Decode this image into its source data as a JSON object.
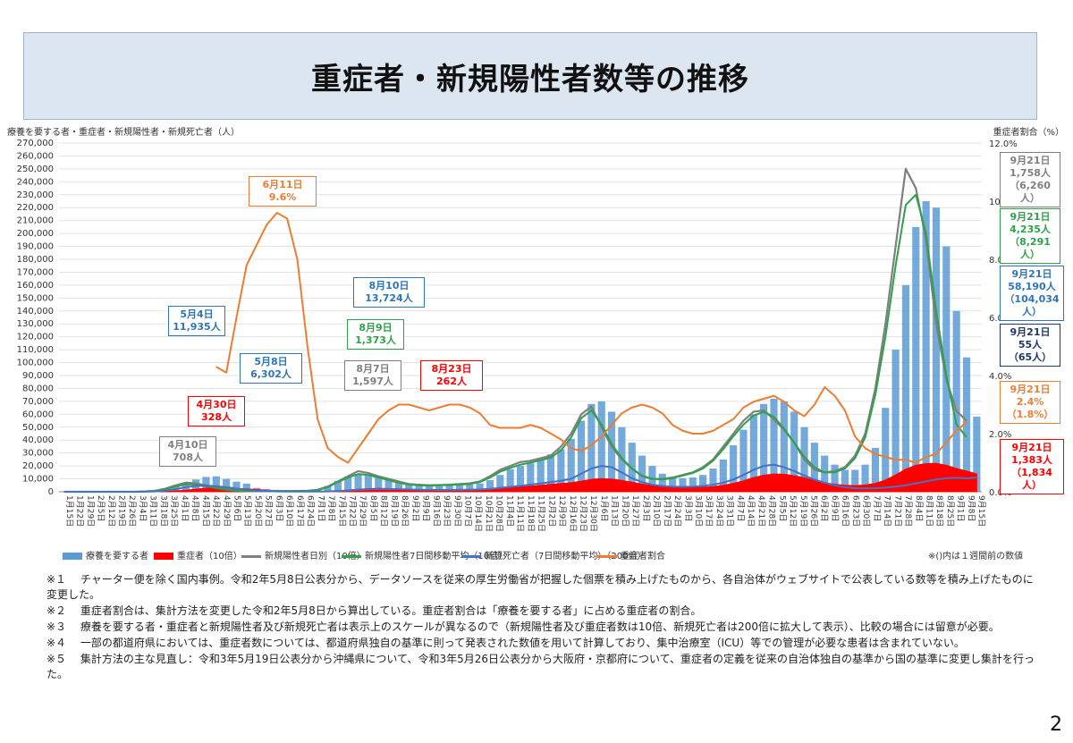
{
  "title": "重症者・新規陽性者数等の推移",
  "page_number": "2",
  "left_axis_title": "療養を要する者・重症者・新規陽性者・新規死亡者（人）",
  "right_axis_title": "重症者割合（%）",
  "colors": {
    "ryoyo": "#5b9bd5",
    "jusho": "#ff0000",
    "daily": "#7f7f7f",
    "avg7": "#2ca24a",
    "death": "#4472c4",
    "ratio": "#ed7d31"
  },
  "chart_data": {
    "type": "bar+line",
    "left_axis": {
      "min": 0,
      "max": 270000,
      "step": 10000
    },
    "right_axis": {
      "min": 0,
      "max": 12,
      "step": 2,
      "unit": "%"
    },
    "left_tick_labels": [
      "0",
      "10,000",
      "20,000",
      "30,000",
      "40,000",
      "50,000",
      "60,000",
      "70,000",
      "80,000",
      "90,000",
      "100,000",
      "110,000",
      "120,000",
      "130,000",
      "140,000",
      "150,000",
      "160,000",
      "170,000",
      "180,000",
      "190,000",
      "200,000",
      "210,000",
      "220,000",
      "230,000",
      "240,000",
      "250,000",
      "260,000",
      "270,000"
    ],
    "right_tick_labels": [
      "0.0%",
      "2.0%",
      "4.0%",
      "6.0%",
      "8.0%",
      "10.0%",
      "12.0%"
    ],
    "x_tick_labels": [
      "1月15日",
      "1月22日",
      "1月29日",
      "2月5日",
      "2月12日",
      "2月19日",
      "2月26日",
      "3月4日",
      "3月11日",
      "3月18日",
      "3月25日",
      "4月1日",
      "4月8日",
      "4月15日",
      "4月22日",
      "4月29日",
      "5月6日",
      "5月13日",
      "5月20日",
      "5月27日",
      "6月3日",
      "6月10日",
      "6月17日",
      "6月24日",
      "7月1日",
      "7月8日",
      "7月15日",
      "7月22日",
      "7月29日",
      "8月5日",
      "8月12日",
      "8月19日",
      "8月26日",
      "9月2日",
      "9月9日",
      "9月16日",
      "9月23日",
      "9月30日",
      "10月7日",
      "10月14日",
      "10月21日",
      "10月28日",
      "11月4日",
      "11月11日",
      "11月18日",
      "11月25日",
      "12月2日",
      "12月9日",
      "12月16日",
      "12月23日",
      "12月30日",
      "1月6日",
      "1月13日",
      "1月20日",
      "1月27日",
      "2月3日",
      "2月10日",
      "2月17日",
      "2月24日",
      "3月3日",
      "3月10日",
      "3月17日",
      "3月24日",
      "3月31日",
      "4月7日",
      "4月14日",
      "4月21日",
      "4月28日",
      "5月5日",
      "5月12日",
      "5月19日",
      "5月26日",
      "6月2日",
      "6月9日",
      "6月16日",
      "6月23日",
      "6月30日",
      "7月7日",
      "7月14日",
      "7月21日",
      "7月28日",
      "8月4日",
      "8月11日",
      "8月18日",
      "8月25日",
      "9月1日",
      "9月8日",
      "9月15日"
    ],
    "week_labels_note": "weekly points from 1月15日 (2020) to 9月21日 (2021)",
    "series": [
      {
        "name": "療養を要する者",
        "kind": "bar",
        "color_key": "ryoyo",
        "axis": "left",
        "values": [
          0,
          0,
          0,
          0,
          0,
          0,
          0,
          0,
          300,
          800,
          2000,
          4500,
          7000,
          9500,
          11500,
          11935,
          10000,
          7800,
          6302,
          3000,
          2000,
          1500,
          1200,
          1100,
          1300,
          2000,
          4500,
          8500,
          12000,
          13724,
          13000,
          11000,
          9000,
          7500,
          6500,
          5500,
          5000,
          4800,
          4800,
          5000,
          5500,
          6500,
          9000,
          13000,
          17500,
          20000,
          22000,
          25000,
          29000,
          33000,
          41000,
          55000,
          68000,
          70000,
          62000,
          50000,
          38000,
          28000,
          20000,
          14000,
          11500,
          10500,
          11000,
          13000,
          18000,
          25000,
          36000,
          48000,
          60000,
          68000,
          72000,
          70000,
          62000,
          50000,
          38000,
          28000,
          21000,
          17000,
          17000,
          21000,
          34000,
          65000,
          110000,
          160000,
          205000,
          225000,
          220000,
          190000,
          140000,
          104034,
          58190
        ]
      },
      {
        "name": "重症者（10倍）",
        "kind": "area",
        "color_key": "jusho",
        "axis": "left",
        "values": [
          0,
          0,
          0,
          0,
          0,
          0,
          0,
          0,
          0,
          100,
          300,
          700,
          1200,
          2000,
          2800,
          3280,
          3000,
          2600,
          2200,
          1700,
          1200,
          800,
          600,
          500,
          400,
          400,
          500,
          800,
          1300,
          1900,
          2400,
          2620,
          2500,
          2200,
          1900,
          1600,
          1500,
          1400,
          1300,
          1300,
          1400,
          1600,
          1900,
          2400,
          3000,
          3600,
          4300,
          5000,
          5800,
          6400,
          7000,
          8200,
          9600,
          10200,
          9800,
          8800,
          7400,
          6000,
          4800,
          4000,
          3500,
          3300,
          3300,
          3500,
          4000,
          5000,
          6500,
          8500,
          11000,
          12800,
          13800,
          13600,
          12500,
          10800,
          8800,
          7000,
          5800,
          5000,
          4800,
          5200,
          6500,
          9000,
          13000,
          17500,
          20500,
          21800,
          22000,
          20500,
          18000,
          16000,
          13830
        ]
      },
      {
        "name": "新規陽性者日別（10倍）",
        "kind": "line",
        "color_key": "daily",
        "axis": "left",
        "values": [
          0,
          0,
          0,
          0,
          0,
          0,
          0,
          0,
          300,
          800,
          2500,
          5000,
          7080,
          6500,
          5000,
          3500,
          2000,
          1000,
          600,
          400,
          500,
          600,
          500,
          600,
          800,
          1500,
          4000,
          8000,
          12000,
          15970,
          14500,
          12000,
          10000,
          8000,
          6000,
          5500,
          5000,
          5200,
          5500,
          6000,
          6500,
          8000,
          12000,
          17000,
          20000,
          23000,
          24000,
          26000,
          28000,
          35000,
          45000,
          60000,
          66000,
          50000,
          35000,
          25000,
          18000,
          12000,
          10000,
          10000,
          11000,
          13000,
          15000,
          19000,
          25000,
          35000,
          45000,
          55000,
          62000,
          63000,
          56000,
          48000,
          38000,
          25000,
          17000,
          15000,
          16000,
          19000,
          28000,
          45000,
          80000,
          130000,
          190000,
          250000,
          235000,
          195000,
          130000,
          87000,
          62600,
          55000
        ]
      },
      {
        "name": "新規陽性者7日間移動平均（10倍）",
        "kind": "line",
        "color_key": "avg7",
        "axis": "left",
        "values": [
          0,
          0,
          0,
          0,
          0,
          0,
          0,
          0,
          150,
          500,
          1800,
          4000,
          5800,
          5500,
          4200,
          2800,
          1500,
          800,
          500,
          400,
          400,
          500,
          500,
          500,
          700,
          1300,
          3500,
          7500,
          11000,
          13730,
          13000,
          11000,
          9000,
          7000,
          5500,
          5000,
          4800,
          5000,
          5200,
          5500,
          6000,
          7500,
          11000,
          15500,
          18500,
          21000,
          22500,
          24500,
          26500,
          32000,
          42000,
          57000,
          63000,
          52000,
          37000,
          26000,
          18000,
          12500,
          10000,
          9500,
          10500,
          12500,
          14500,
          18000,
          24000,
          33000,
          43000,
          52000,
          59000,
          62000,
          58000,
          49000,
          38000,
          27000,
          19000,
          15000,
          15000,
          18000,
          26000,
          42000,
          75000,
          120000,
          175000,
          222000,
          230000,
          200000,
          140000,
          90000,
          52000,
          42350
        ]
      },
      {
        "name": "新規死亡者（7日間移動平均）（200倍）",
        "kind": "line",
        "color_key": "death",
        "axis": "left",
        "values": [
          0,
          0,
          0,
          0,
          0,
          0,
          0,
          0,
          100,
          300,
          900,
          2000,
          3500,
          4500,
          4800,
          4300,
          3500,
          2500,
          1500,
          800,
          500,
          300,
          200,
          150,
          150,
          200,
          300,
          600,
          1000,
          1500,
          1800,
          2000,
          2100,
          2000,
          1800,
          1600,
          1500,
          1400,
          1400,
          1500,
          1600,
          1800,
          2200,
          3000,
          3800,
          4600,
          5500,
          6500,
          7500,
          8500,
          10000,
          14000,
          18000,
          20000,
          19000,
          15000,
          10500,
          7500,
          5500,
          4500,
          4000,
          3800,
          4000,
          4500,
          5500,
          7000,
          9500,
          13000,
          17000,
          20000,
          21000,
          19000,
          16000,
          12500,
          9500,
          7000,
          5000,
          3500,
          2800,
          2600,
          2800,
          3200,
          4000,
          5000,
          6500,
          8000,
          9500,
          10500,
          10800,
          10500,
          11000
        ]
      },
      {
        "name": "重症者割合",
        "kind": "line",
        "color_key": "ratio",
        "axis": "right",
        "values": [
          null,
          null,
          null,
          null,
          null,
          null,
          null,
          null,
          null,
          null,
          null,
          null,
          null,
          null,
          null,
          4.3,
          4.1,
          6.0,
          7.8,
          8.5,
          9.2,
          9.6,
          9.4,
          8.0,
          5.0,
          2.5,
          1.5,
          1.2,
          1.0,
          1.5,
          2.0,
          2.5,
          2.8,
          3.0,
          3.0,
          2.9,
          2.8,
          2.9,
          3.0,
          3.0,
          2.9,
          2.7,
          2.3,
          2.2,
          2.2,
          2.2,
          2.3,
          2.2,
          2.0,
          1.8,
          1.5,
          1.4,
          1.6,
          1.9,
          2.3,
          2.7,
          2.9,
          3.0,
          2.9,
          2.7,
          2.3,
          2.1,
          2.0,
          2.0,
          2.1,
          2.3,
          2.5,
          2.9,
          3.1,
          3.2,
          3.3,
          3.1,
          2.8,
          2.6,
          3.0,
          3.6,
          3.3,
          2.8,
          1.9,
          1.5,
          1.3,
          1.2,
          1.1,
          1.1,
          1.0,
          1.2,
          1.3,
          1.7,
          2.1,
          2.4
        ]
      }
    ]
  },
  "annotations": [
    {
      "id": "a1",
      "lines": [
        "4月10日",
        "708人"
      ],
      "color": "#7f7f7f"
    },
    {
      "id": "a2",
      "lines": [
        "4月30日",
        "328人"
      ],
      "color": "#ff0000"
    },
    {
      "id": "a3",
      "lines": [
        "5月4日",
        "11,935人"
      ],
      "color": "#2e75b6"
    },
    {
      "id": "a4",
      "lines": [
        "5月8日",
        "6,302人"
      ],
      "color": "#2e75b6"
    },
    {
      "id": "a5",
      "lines": [
        "6月11日",
        "9.6%"
      ],
      "color": "#ed7d31"
    },
    {
      "id": "a6",
      "lines": [
        "8月10日",
        "13,724人"
      ],
      "color": "#2e75b6"
    },
    {
      "id": "a7",
      "lines": [
        "8月9日",
        "1,373人"
      ],
      "color": "#2ca24a"
    },
    {
      "id": "a8",
      "lines": [
        "8月7日",
        "1,597人"
      ],
      "color": "#7f7f7f"
    },
    {
      "id": "a9",
      "lines": [
        "8月23日",
        "262人"
      ],
      "color": "#ff0000"
    },
    {
      "id": "r1",
      "lines": [
        "9月21日",
        "1,758人",
        "（6,260人）"
      ],
      "color": "#7f7f7f"
    },
    {
      "id": "r2",
      "lines": [
        "9月21日",
        "4,235人",
        "（8,291人）"
      ],
      "color": "#2ca24a"
    },
    {
      "id": "r3",
      "lines": [
        "9月21日",
        "58,190人",
        "（104,034人）"
      ],
      "color": "#2e75b6"
    },
    {
      "id": "r4",
      "lines": [
        "9月21日",
        "55人",
        "（65人）"
      ],
      "color": "#1f3864"
    },
    {
      "id": "r5",
      "lines": [
        "9月21日",
        "2.4%",
        "（1.8%）"
      ],
      "color": "#ed7d31"
    },
    {
      "id": "r6",
      "lines": [
        "9月21日",
        "1,383人",
        "（1,834人）"
      ],
      "color": "#ff0000"
    }
  ],
  "legend": {
    "items": [
      {
        "label": "療養を要する者",
        "color_key": "ryoyo",
        "kind": "bar"
      },
      {
        "label": "重症者（10倍）",
        "color_key": "jusho",
        "kind": "bar"
      },
      {
        "label": "新規陽性者日別（10倍）",
        "color_key": "daily",
        "kind": "line"
      },
      {
        "label": "新規陽性者7日間移動平均（10倍）",
        "color_key": "avg7",
        "kind": "line"
      },
      {
        "label": "新規死亡者（7日間移動平均）（200倍）",
        "color_key": "death",
        "kind": "line"
      },
      {
        "label": "重症者割合",
        "color_key": "ratio",
        "kind": "line"
      }
    ],
    "note": "※()内は１週間前の数値"
  },
  "notes": [
    "※１　 チャーター便を除く国内事例。令和2年5月8日公表分から、データソースを従来の厚生労働省が把握した個票を積み上げたものから、各自治体がウェブサイトで公表している数等を積み上げたものに変更した。",
    "※２　 重症者割合は、集計方法を変更した令和2年5月8日から算出している。重症者割合は「療養を要する者」に占める重症者の割合。",
    "※３　 療養を要する者・重症者と新規陽性者及び新規死亡者は表示上のスケールが異なるので（新規陽性者及び重症者数は10倍、新規死亡者は200倍に拡大して表示）、比較の場合には留意が必要。",
    "※４　 一部の都道府県においては、重症者数については、都道府県独自の基準に則って発表された数値を用いて計算しており、集中治療室（ICU）等での管理が必要な患者は含まれていない。",
    "※５　 集計方法の主な見直し：令和3年5月19日公表分から沖縄県について、令和3年5月26日公表分から大阪府・京都府について、重症者の定義を従来の自治体独自の基準から国の基準に変更し集計を行った。"
  ]
}
